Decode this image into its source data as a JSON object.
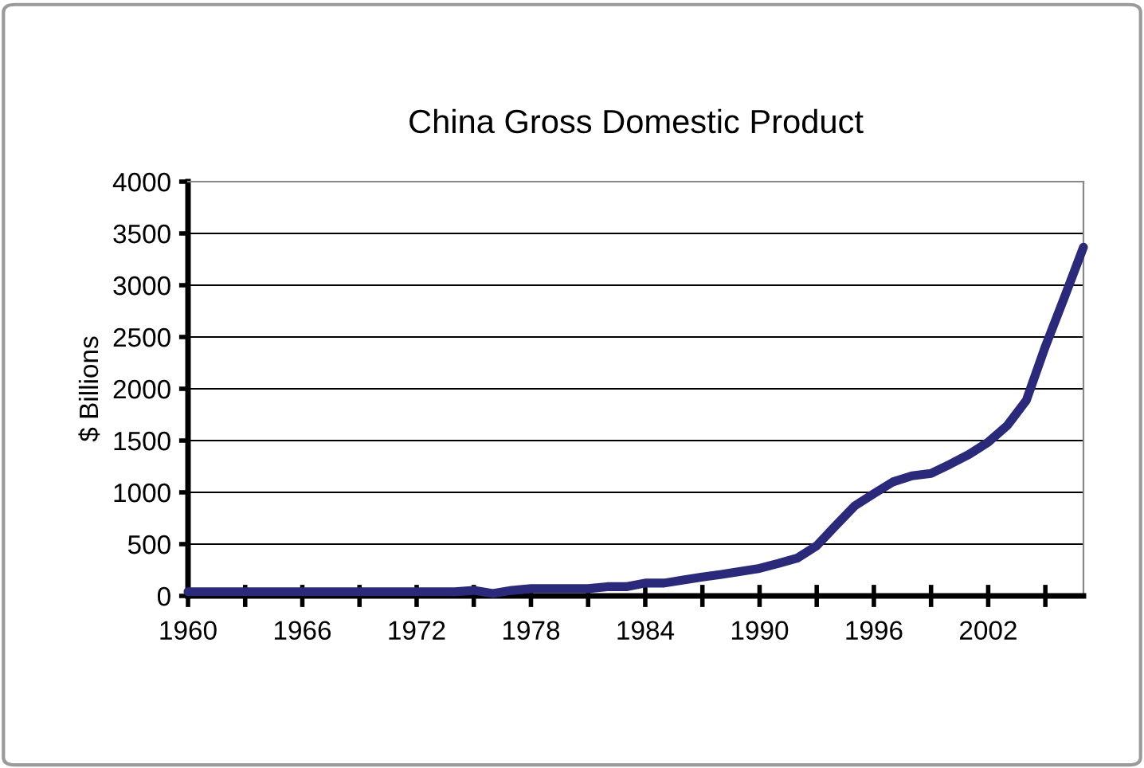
{
  "chart_data": {
    "type": "line",
    "title": "China Gross Domestic Product",
    "ylabel": "$ Billions",
    "x": [
      1960,
      1961,
      1962,
      1963,
      1964,
      1965,
      1966,
      1967,
      1968,
      1969,
      1970,
      1971,
      1972,
      1973,
      1974,
      1975,
      1976,
      1977,
      1978,
      1979,
      1980,
      1981,
      1982,
      1983,
      1984,
      1985,
      1986,
      1987,
      1988,
      1989,
      1990,
      1991,
      1992,
      1993,
      1994,
      1995,
      1996,
      1997,
      1998,
      1999,
      2000,
      2001,
      2002,
      2003,
      2004,
      2005,
      2006,
      2007
    ],
    "series": [
      {
        "color": "#2b2a7a",
        "values": [
          40,
          40,
          40,
          40,
          40,
          40,
          40,
          40,
          40,
          40,
          40,
          40,
          40,
          40,
          40,
          53,
          24,
          53,
          70,
          70,
          70,
          70,
          89,
          89,
          124,
          124,
          154,
          183,
          207,
          237,
          266,
          314,
          367,
          485,
          680,
          870,
          988,
          1101,
          1160,
          1183,
          1272,
          1367,
          1485,
          1645,
          1888,
          2408,
          2882,
          3367
        ]
      }
    ],
    "xlim": [
      1960,
      2007
    ],
    "ylim": [
      0,
      4000
    ],
    "xticks": [
      1960,
      {
        "value": 1963,
        "label": null
      },
      1966,
      {
        "value": 1969,
        "label": null
      },
      1972,
      {
        "value": 1975,
        "label": null
      },
      1978,
      {
        "value": 1981,
        "label": null
      },
      1984,
      {
        "value": 1987,
        "label": null
      },
      1990,
      {
        "value": 1993,
        "label": null
      },
      1996,
      {
        "value": 1999,
        "label": null
      },
      2002,
      {
        "value": 2005,
        "label": null
      }
    ],
    "yticks": [
      0,
      500,
      1000,
      1500,
      2000,
      2500,
      3000,
      3500,
      4000
    ],
    "grid": "y",
    "marker": "none",
    "line_style": "solid"
  }
}
